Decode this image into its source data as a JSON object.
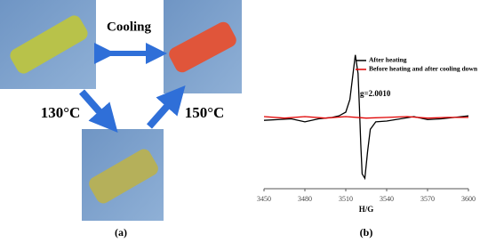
{
  "figure": {
    "cooling": "Cooling",
    "left_temp": "130°C",
    "right_temp": "150°C",
    "panel_a": "(a)",
    "panel_b": "(b)"
  },
  "chart_data": {
    "type": "line",
    "xlabel": "H/G",
    "annotation": "g=2.0010",
    "xlim": [
      3450,
      3600
    ],
    "xticks": [
      3450,
      3480,
      3510,
      3540,
      3570,
      3600
    ],
    "ylim": [
      -1,
      1
    ],
    "series": [
      {
        "name": "After heating",
        "color": "#000000",
        "x": [
          3450,
          3460,
          3470,
          3480,
          3490,
          3500,
          3505,
          3510,
          3513,
          3515,
          3517,
          3519,
          3520,
          3521,
          3522,
          3524,
          3526,
          3528,
          3532,
          3540,
          3550,
          3560,
          3570,
          3580,
          3590,
          3600
        ],
        "values": [
          -0.08,
          -0.07,
          -0.06,
          -0.1,
          -0.06,
          -0.04,
          -0.02,
          0.03,
          0.2,
          0.5,
          0.8,
          0.55,
          0.1,
          -0.4,
          -0.8,
          -0.86,
          -0.5,
          -0.2,
          -0.1,
          -0.09,
          -0.06,
          -0.03,
          -0.07,
          -0.06,
          -0.04,
          -0.02
        ]
      },
      {
        "name": "Before heating and after cooling down",
        "color": "#e00000",
        "x": [
          3450,
          3465,
          3480,
          3495,
          3510,
          3525,
          3540,
          3555,
          3570,
          3585,
          3600
        ],
        "values": [
          -0.03,
          -0.05,
          -0.03,
          -0.05,
          -0.03,
          -0.05,
          -0.04,
          -0.03,
          -0.05,
          -0.04,
          -0.04
        ]
      }
    ]
  }
}
